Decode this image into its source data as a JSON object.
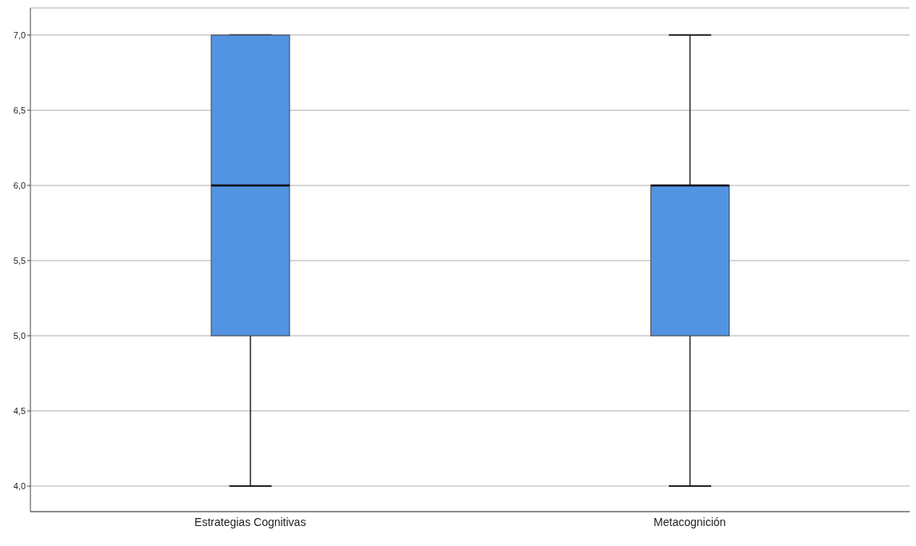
{
  "chart_data": {
    "type": "box",
    "categories": [
      "Estrategias Cognitivas",
      "Metacognición"
    ],
    "color": "#5294e2",
    "boxes": [
      {
        "low": 4,
        "q1": 5,
        "median": 6,
        "q3": 7,
        "high": 7
      },
      {
        "low": 4,
        "q1": 5,
        "median": 6,
        "q3": 6,
        "high": 7
      }
    ],
    "ylim": [
      3.83,
      7.18
    ],
    "yticks": [
      {
        "value": 4,
        "label": "4,0"
      },
      {
        "value": 4.5,
        "label": "4,5"
      },
      {
        "value": 5,
        "label": "5,0"
      },
      {
        "value": 5.5,
        "label": "5,5"
      },
      {
        "value": 6,
        "label": "6,0"
      },
      {
        "value": 6.5,
        "label": "6,5"
      },
      {
        "value": 7,
        "label": "7,0"
      }
    ],
    "grid": "y",
    "legend": false
  }
}
